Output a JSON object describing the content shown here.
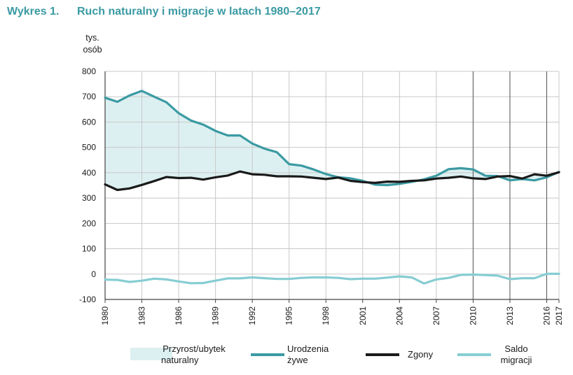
{
  "header": {
    "figure_number": "Wykres 1.",
    "title": "Ruch naturalny i migracje w latach 1980–2017"
  },
  "colors": {
    "title": "#3a9aa3",
    "births": "#3b9aa3",
    "deaths": "#1a1a1a",
    "migration": "#86cdd3",
    "fill": "#ddf0f1",
    "grid": "#c8c8c8"
  },
  "chart_data": {
    "type": "line",
    "title": "Ruch naturalny i migracje w latach 1980–2017",
    "ylabel": "tys. osób",
    "ylabel_lines": [
      "tys.",
      "osób"
    ],
    "xlabel": "",
    "ylim": [
      -100,
      800
    ],
    "yticks": [
      800,
      700,
      600,
      500,
      400,
      300,
      200,
      100,
      0,
      -100
    ],
    "xticks": [
      1980,
      1983,
      1986,
      1989,
      1992,
      1995,
      1998,
      2001,
      2004,
      2007,
      2010,
      2013,
      2016,
      2017
    ],
    "x": [
      1980,
      1981,
      1982,
      1983,
      1984,
      1985,
      1986,
      1987,
      1988,
      1989,
      1990,
      1991,
      1992,
      1993,
      1994,
      1995,
      1996,
      1997,
      1998,
      1999,
      2000,
      2001,
      2002,
      2003,
      2004,
      2005,
      2006,
      2007,
      2008,
      2009,
      2010,
      2011,
      2012,
      2013,
      2014,
      2015,
      2016,
      2017
    ],
    "series": [
      {
        "name": "Urodzenia żywe",
        "legend_lines": [
          "Urodzenia",
          "żywe"
        ],
        "values": [
          696,
          680,
          705,
          723,
          700,
          678,
          635,
          606,
          590,
          565,
          547,
          547,
          515,
          495,
          481,
          434,
          428,
          413,
          395,
          382,
          378,
          368,
          353,
          351,
          356,
          364,
          374,
          388,
          414,
          418,
          413,
          388,
          387,
          370,
          375,
          370,
          382,
          403
        ]
      },
      {
        "name": "Zgony",
        "legend_lines": [
          "Zgony"
        ],
        "values": [
          354,
          332,
          338,
          352,
          367,
          383,
          379,
          380,
          373,
          382,
          389,
          405,
          394,
          392,
          386,
          386,
          385,
          380,
          375,
          381,
          368,
          363,
          360,
          365,
          364,
          368,
          370,
          377,
          380,
          385,
          378,
          375,
          385,
          387,
          377,
          394,
          388,
          402
        ]
      },
      {
        "name": "Saldo migracji",
        "legend_lines": [
          "Saldo",
          "migracji"
        ],
        "values": [
          -22,
          -23,
          -31,
          -26,
          -18,
          -21,
          -29,
          -36,
          -35,
          -26,
          -17,
          -17,
          -13,
          -16,
          -19,
          -19,
          -15,
          -13,
          -13,
          -15,
          -20,
          -18,
          -18,
          -14,
          -9,
          -13,
          -37,
          -21,
          -15,
          -3,
          -2,
          -4,
          -6,
          -20,
          -16,
          -16,
          1,
          1
        ]
      }
    ],
    "fill_between": {
      "name": "Przyrost/ubytek naturalny",
      "legend_lines": [
        "Przyrost/ubytek",
        "naturalny"
      ]
    },
    "vertical_lines": [
      2010,
      2013,
      2016
    ],
    "legend_position": "bottom",
    "grid": true
  }
}
